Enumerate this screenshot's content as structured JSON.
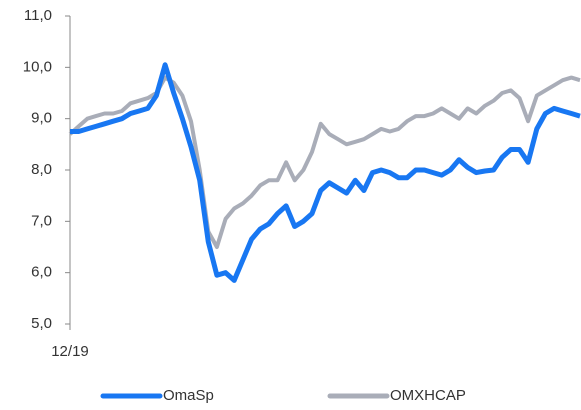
{
  "chart_data": {
    "type": "line",
    "categories": [
      "12/19",
      null,
      null,
      null,
      null,
      null,
      null,
      null,
      null,
      null,
      null,
      null,
      null,
      null,
      null,
      null,
      null,
      null,
      null,
      null,
      null,
      null,
      null,
      null,
      null,
      null,
      null,
      null,
      null,
      null,
      null,
      null,
      null,
      null,
      null,
      null,
      null,
      null,
      null,
      null,
      null,
      null,
      null,
      null,
      null,
      null,
      null,
      null,
      null,
      null,
      null,
      null,
      null,
      null,
      null,
      null,
      null,
      null,
      null,
      null
    ],
    "series": [
      {
        "name": "OMXHCAP",
        "color": "#a9adb8",
        "values": [
          8.7,
          8.85,
          9.0,
          9.05,
          9.1,
          9.1,
          9.15,
          9.3,
          9.35,
          9.4,
          9.5,
          9.8,
          9.7,
          9.45,
          8.95,
          8.0,
          6.8,
          6.5,
          7.05,
          7.25,
          7.35,
          7.5,
          7.7,
          7.8,
          7.8,
          8.15,
          7.8,
          8.0,
          8.35,
          8.9,
          8.7,
          8.6,
          8.5,
          8.55,
          8.6,
          8.7,
          8.8,
          8.75,
          8.8,
          8.95,
          9.05,
          9.05,
          9.1,
          9.2,
          9.1,
          9.0,
          9.2,
          9.1,
          9.25,
          9.35,
          9.5,
          9.55,
          9.4,
          8.95,
          9.45,
          9.55,
          9.65,
          9.75,
          9.8,
          9.75
        ]
      },
      {
        "name": "OmaSp",
        "color": "#1877f2",
        "values": [
          8.75,
          8.75,
          8.8,
          8.85,
          8.9,
          8.95,
          9.0,
          9.1,
          9.15,
          9.2,
          9.45,
          10.05,
          9.5,
          9.0,
          8.45,
          7.8,
          6.6,
          5.95,
          6.0,
          5.85,
          6.25,
          6.65,
          6.85,
          6.95,
          7.15,
          7.3,
          6.9,
          7.0,
          7.15,
          7.6,
          7.75,
          7.65,
          7.55,
          7.8,
          7.6,
          7.95,
          8.0,
          7.95,
          7.85,
          7.85,
          8.0,
          8.0,
          7.95,
          7.9,
          8.0,
          8.2,
          8.05,
          7.95,
          7.98,
          8.0,
          8.25,
          8.4,
          8.4,
          8.15,
          8.8,
          9.1,
          9.2,
          9.15,
          9.1,
          9.05
        ]
      }
    ],
    "ylim": [
      5,
      11
    ],
    "yticks": [
      {
        "value": 5,
        "label": "5,0"
      },
      {
        "value": 6,
        "label": "6,0"
      },
      {
        "value": 7,
        "label": "7,0"
      },
      {
        "value": 8,
        "label": "8,0"
      },
      {
        "value": 9,
        "label": "9,0"
      },
      {
        "value": 10,
        "label": "10,0"
      },
      {
        "value": 11,
        "label": "11,0"
      }
    ],
    "grid": false,
    "legend": "bottom"
  }
}
